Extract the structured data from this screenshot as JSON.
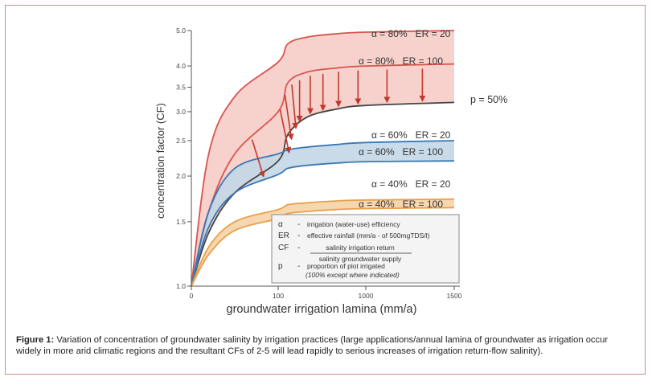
{
  "chart_data": {
    "type": "line",
    "ylabel": "concentration factor (CF)",
    "xlabel": "groundwater irrigation lamina (mm/a)",
    "x_ticks": [
      {
        "value": 0,
        "label": "0"
      },
      {
        "value": 100,
        "label": "100"
      },
      {
        "value": 1000,
        "label": "1000"
      },
      {
        "value": 1500,
        "label": "1500"
      }
    ],
    "y_ticks": [
      {
        "value": 1.0,
        "label": "1.0"
      },
      {
        "value": 1.5,
        "label": "1.5"
      },
      {
        "value": 2.0,
        "label": "2.0"
      },
      {
        "value": 2.5,
        "label": "2.5"
      },
      {
        "value": 3.0,
        "label": "3.0"
      },
      {
        "value": 3.5,
        "label": "3.5"
      },
      {
        "value": 4.0,
        "label": "4.0"
      },
      {
        "value": 5.0,
        "label": "5.0"
      }
    ],
    "ylim": [
      1.0,
      5.0
    ],
    "series": [
      {
        "name": "α = 80%   ER = 20",
        "color": "#d9534f",
        "x": [
          0,
          20,
          50,
          100,
          200,
          400,
          700,
          1000,
          1500
        ],
        "values": [
          1.0,
          2.3,
          3.3,
          4.1,
          4.6,
          4.8,
          4.9,
          4.95,
          5.0
        ]
      },
      {
        "name": "α = 80%   ER = 100",
        "color": "#d9534f",
        "x": [
          0,
          20,
          50,
          100,
          200,
          400,
          700,
          1000,
          1500
        ],
        "values": [
          1.0,
          1.6,
          2.3,
          3.0,
          3.6,
          3.85,
          3.95,
          4.0,
          4.05
        ]
      },
      {
        "name": "p = 50%",
        "color": "#444444",
        "x": [
          0,
          20,
          50,
          100,
          200,
          400,
          700,
          1000,
          1500
        ],
        "values": [
          1.0,
          1.4,
          1.8,
          2.2,
          2.6,
          2.9,
          3.05,
          3.12,
          3.18
        ]
      },
      {
        "name": "α = 60%   ER = 20",
        "color": "#3a78b5",
        "x": [
          0,
          20,
          50,
          100,
          200,
          400,
          700,
          1000,
          1500
        ],
        "values": [
          1.0,
          1.6,
          2.1,
          2.3,
          2.36,
          2.4,
          2.44,
          2.47,
          2.5
        ]
      },
      {
        "name": "α = 60%   ER = 100",
        "color": "#3a78b5",
        "x": [
          0,
          20,
          50,
          100,
          200,
          400,
          700,
          1000,
          1500
        ],
        "values": [
          1.0,
          1.45,
          1.8,
          2.02,
          2.1,
          2.14,
          2.17,
          2.19,
          2.2
        ]
      },
      {
        "name": "α = 40%   ER = 20",
        "color": "#e8a04a",
        "x": [
          0,
          20,
          50,
          100,
          200,
          400,
          700,
          1000,
          1500
        ],
        "values": [
          1.0,
          1.28,
          1.5,
          1.62,
          1.67,
          1.69,
          1.71,
          1.72,
          1.73
        ]
      },
      {
        "name": "α = 40%   ER = 100",
        "color": "#e8a04a",
        "x": [
          0,
          20,
          50,
          100,
          200,
          400,
          700,
          1000,
          1500
        ],
        "values": [
          1.0,
          1.22,
          1.42,
          1.53,
          1.58,
          1.6,
          1.62,
          1.63,
          1.64
        ]
      }
    ],
    "annotations": {
      "s0": "α = 80%   ER = 20",
      "s1": "α = 80%   ER = 100",
      "s2": "p = 50%",
      "s3": "α = 60%   ER = 20",
      "s4": "α = 60%   ER = 100",
      "s5": "α = 40%   ER = 20",
      "s6": "α = 40%   ER = 100"
    },
    "legend": {
      "rows": [
        {
          "sym": "α",
          "desc": "irrigation (water-use) efficiency"
        },
        {
          "sym": "ER",
          "desc": "effective rainfall (mm/a - of 500mgTDS/l)"
        },
        {
          "sym": "CF",
          "num": "salinity irrigation return",
          "den": "salinity groundwater supply"
        },
        {
          "sym": "p",
          "desc": "proportion of plot irrigated",
          "note": "(100% except where indicated)"
        }
      ]
    }
  },
  "caption": {
    "label": "Figure 1:",
    "text": " Variation of concentration of groundwater salinity by irrigation practices (large applications/annual lamina of groundwater as irrigation occur widely in more arid climatic regions and the resultant CFs of 2-5 will lead rapidly to serious increases of irrigation return-flow salinity)."
  }
}
